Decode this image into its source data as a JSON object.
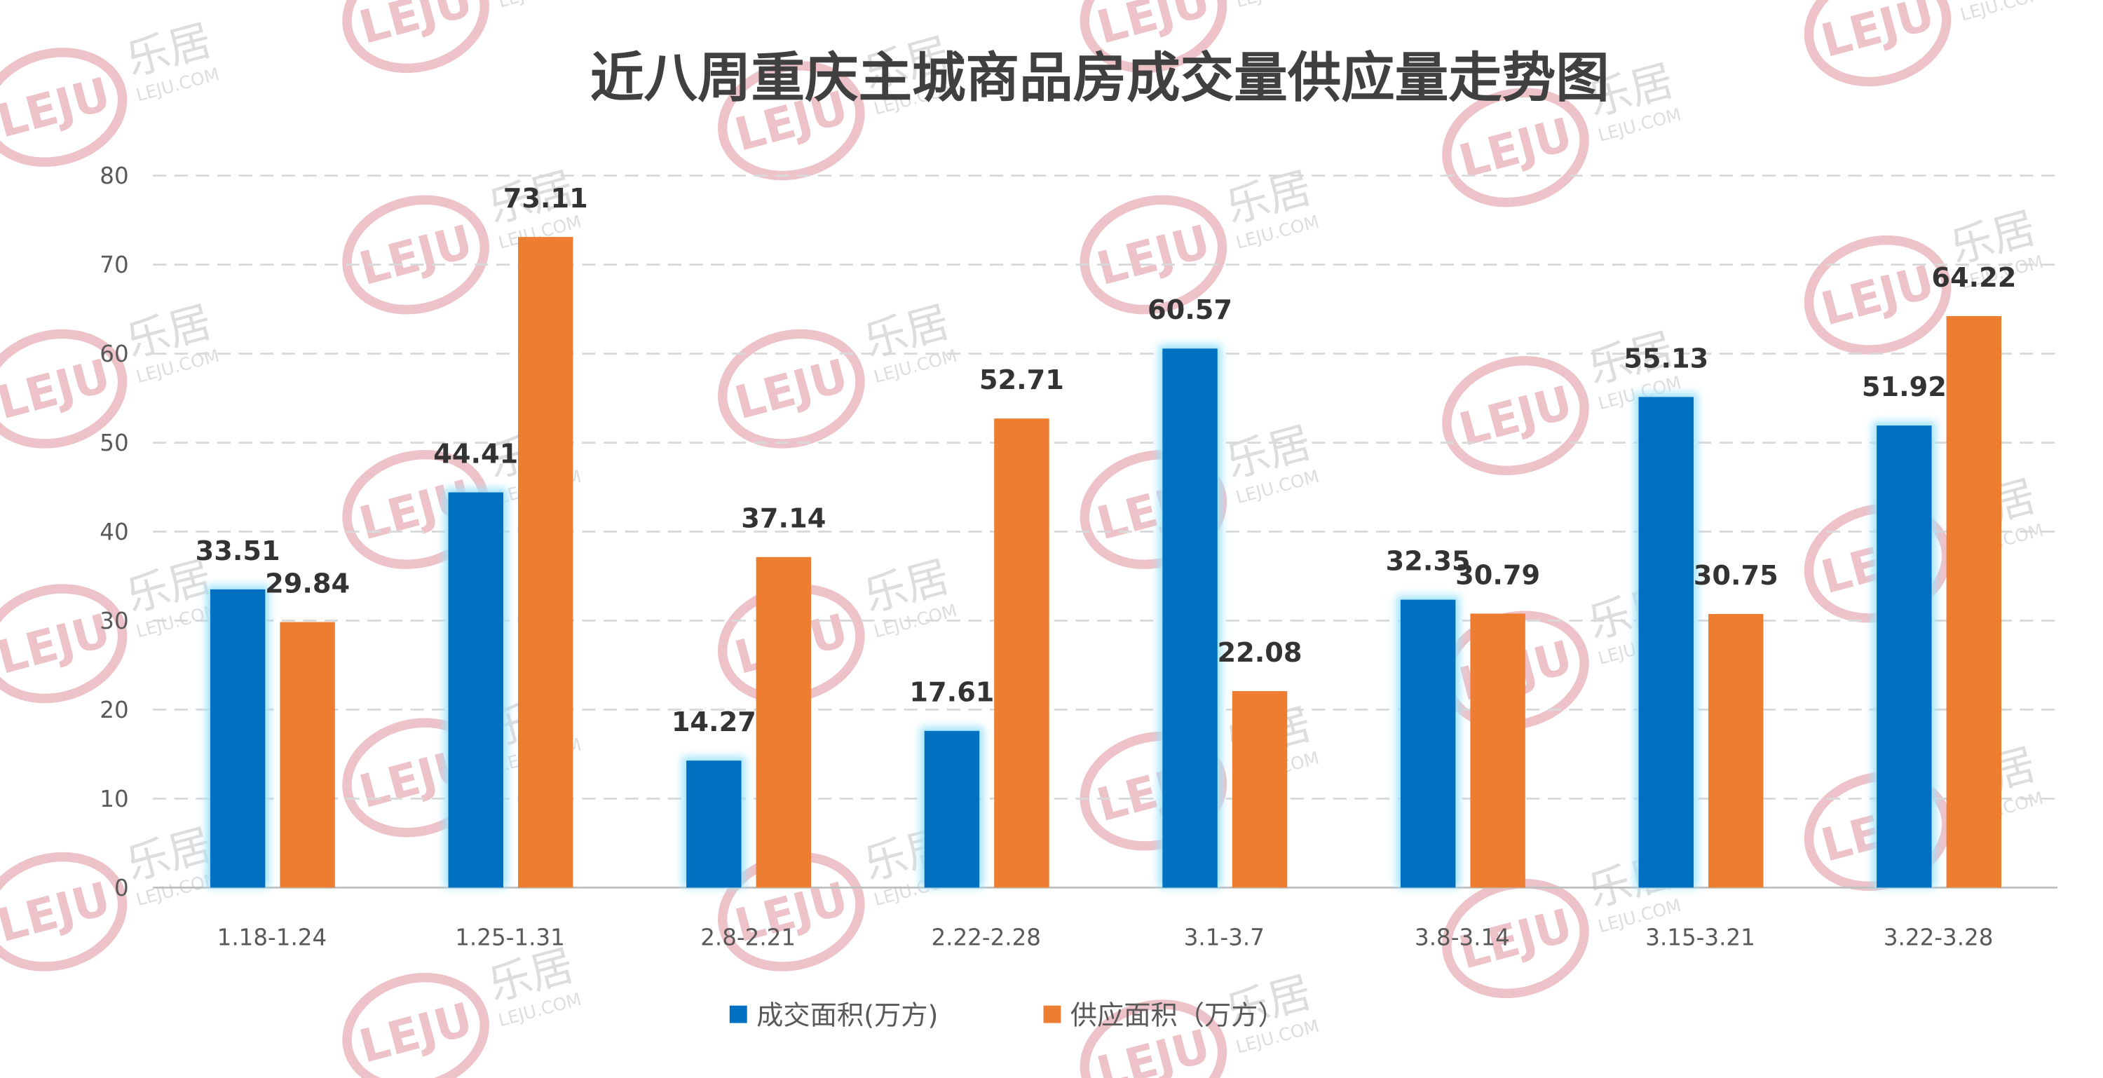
{
  "watermark": {
    "logo": "LEJU",
    "brand": "乐居",
    "site": "LEJU.COM"
  },
  "colors": {
    "series1": "#0070C0",
    "series2": "#ED7D31",
    "glow": "#9FE3FA",
    "grid": "#D9D9D9"
  },
  "chart_data": {
    "type": "bar",
    "title": "近八周重庆主城商品房成交量供应量走势图",
    "xlabel": "",
    "ylabel": "",
    "ylim": [
      0,
      80
    ],
    "yticks": [
      "0",
      "10",
      "20",
      "30",
      "40",
      "50",
      "60",
      "70",
      "80"
    ],
    "grid": true,
    "legend_position": "bottom",
    "categories": [
      "1.18-1.24",
      "1.25-1.31",
      "2.8-2.21",
      "2.22-2.28",
      "3.1-3.7",
      "3.8-3.14",
      "3.15-3.21",
      "3.22-3.28"
    ],
    "series": [
      {
        "name": "成交面积(万方)",
        "values": [
          33.51,
          44.41,
          14.27,
          17.61,
          60.57,
          32.35,
          55.13,
          51.92
        ],
        "labels": [
          "33.51",
          "44.41",
          "14.27",
          "17.61",
          "60.57",
          "32.35",
          "55.13",
          "51.92"
        ]
      },
      {
        "name": "供应面积（万方）",
        "values": [
          29.84,
          73.11,
          37.14,
          52.71,
          22.08,
          30.79,
          30.75,
          64.22
        ],
        "labels": [
          "29.84",
          "73.11",
          "37.14",
          "52.71",
          "22.08",
          "30.79",
          "30.75",
          "64.22"
        ]
      }
    ]
  }
}
